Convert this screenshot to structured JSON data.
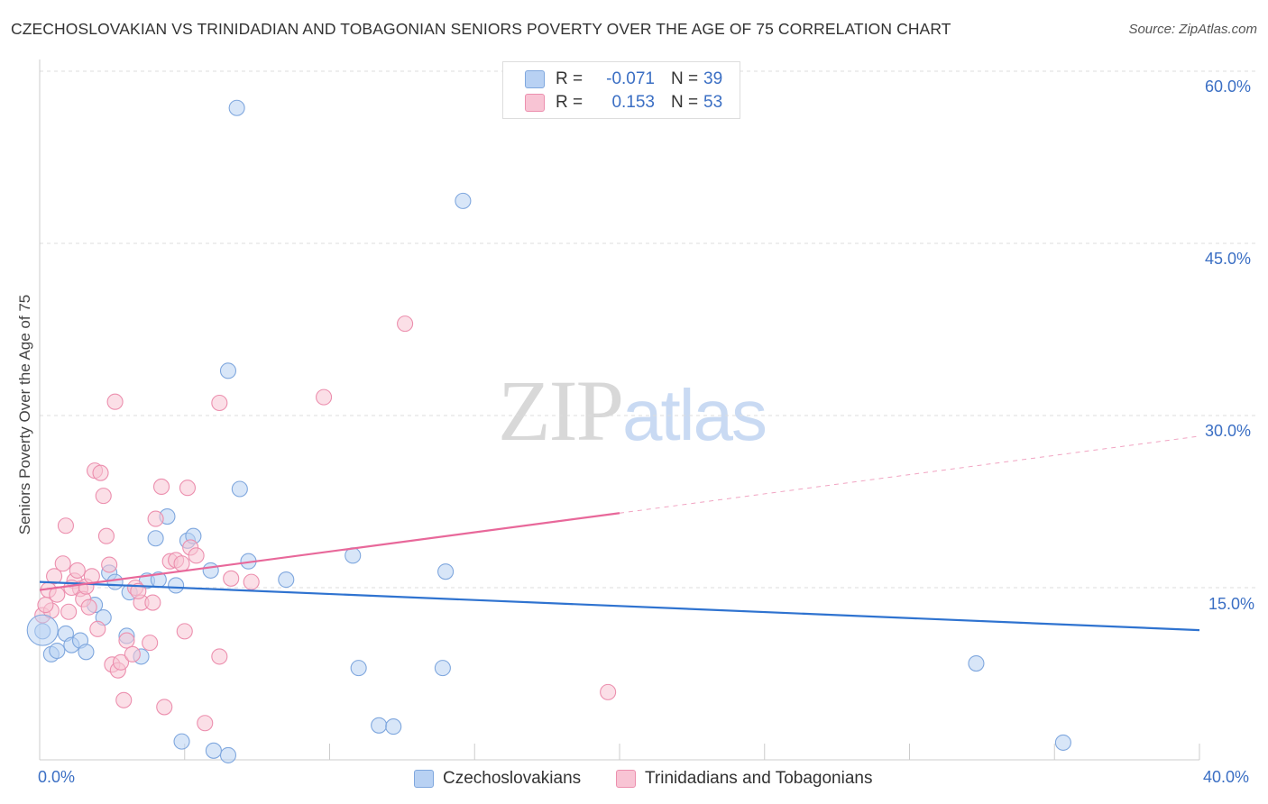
{
  "title": "CZECHOSLOVAKIAN VS TRINIDADIAN AND TOBAGONIAN SENIORS POVERTY OVER THE AGE OF 75 CORRELATION CHART",
  "source": "Source: ZipAtlas.com",
  "watermark": {
    "zip": "ZIP",
    "atlas": "atlas"
  },
  "legend": {
    "rows": [
      {
        "r_label": "R =",
        "r_value": "-0.071",
        "n_label": "N =",
        "n_value": "39"
      },
      {
        "r_label": "R =",
        "r_value": "0.153",
        "n_label": "N =",
        "n_value": "53"
      }
    ]
  },
  "colors": {
    "blue_fill": "#b8d1f3",
    "blue_stroke": "#7fa7de",
    "blue_line": "#2f73d0",
    "pink_fill": "#f8c4d4",
    "pink_stroke": "#ec8fae",
    "pink_line": "#e8689a",
    "grid": "#dddddd",
    "axis_text": "#3b6fc4"
  },
  "chart_data": {
    "type": "scatter",
    "ylabel": "Seniors Poverty Over the Age of 75",
    "x_tick_labels": {
      "left": "0.0%",
      "right": "40.0%"
    },
    "y_tick_labels": [
      "15.0%",
      "30.0%",
      "45.0%",
      "60.0%"
    ],
    "xlim": [
      0,
      40
    ],
    "ylim": [
      0,
      60
    ],
    "grid": true,
    "series": [
      {
        "name": "Czechoslovakians",
        "color": "#b8d1f3",
        "points": [
          [
            0.1,
            11.2
          ],
          [
            0.4,
            9.2
          ],
          [
            0.6,
            9.5
          ],
          [
            0.9,
            11.0
          ],
          [
            1.1,
            10.0
          ],
          [
            1.4,
            10.4
          ],
          [
            1.6,
            9.4
          ],
          [
            1.9,
            13.5
          ],
          [
            2.2,
            12.4
          ],
          [
            2.4,
            16.3
          ],
          [
            2.6,
            15.5
          ],
          [
            3.0,
            10.8
          ],
          [
            3.1,
            14.6
          ],
          [
            3.5,
            9.0
          ],
          [
            3.7,
            15.6
          ],
          [
            4.0,
            19.3
          ],
          [
            4.1,
            15.7
          ],
          [
            4.4,
            21.2
          ],
          [
            4.7,
            15.2
          ],
          [
            5.1,
            19.1
          ],
          [
            5.3,
            19.5
          ],
          [
            5.9,
            16.5
          ],
          [
            6.5,
            33.9
          ],
          [
            6.5,
            0.4
          ],
          [
            4.9,
            1.6
          ],
          [
            6.9,
            23.6
          ],
          [
            6.8,
            56.8
          ],
          [
            7.2,
            17.3
          ],
          [
            8.5,
            15.7
          ],
          [
            11.0,
            8.0
          ],
          [
            10.8,
            17.8
          ],
          [
            11.7,
            3.0
          ],
          [
            12.2,
            2.9
          ],
          [
            13.9,
            8.0
          ],
          [
            14.0,
            16.4
          ],
          [
            14.6,
            48.7
          ],
          [
            32.3,
            8.4
          ],
          [
            35.3,
            1.5
          ],
          [
            6.0,
            0.8
          ]
        ],
        "trend": {
          "x": [
            0,
            40
          ],
          "y": [
            15.5,
            11.3
          ]
        }
      },
      {
        "name": "Trinidadians and Tobagonians",
        "color": "#f8c4d4",
        "points": [
          [
            0.1,
            12.6
          ],
          [
            0.3,
            14.8
          ],
          [
            0.4,
            13.0
          ],
          [
            0.5,
            16.0
          ],
          [
            0.6,
            14.4
          ],
          [
            0.8,
            17.1
          ],
          [
            0.9,
            20.4
          ],
          [
            1.0,
            12.9
          ],
          [
            1.2,
            15.6
          ],
          [
            1.3,
            16.5
          ],
          [
            1.4,
            14.9
          ],
          [
            1.5,
            14.0
          ],
          [
            1.6,
            15.1
          ],
          [
            1.7,
            13.3
          ],
          [
            1.8,
            16.0
          ],
          [
            1.9,
            25.2
          ],
          [
            2.0,
            11.4
          ],
          [
            2.1,
            25.0
          ],
          [
            2.2,
            23.0
          ],
          [
            2.3,
            19.5
          ],
          [
            2.4,
            17.0
          ],
          [
            2.5,
            8.3
          ],
          [
            2.6,
            31.2
          ],
          [
            2.7,
            7.8
          ],
          [
            2.8,
            8.5
          ],
          [
            2.9,
            5.2
          ],
          [
            3.0,
            10.4
          ],
          [
            3.2,
            9.2
          ],
          [
            3.3,
            15.0
          ],
          [
            3.5,
            13.7
          ],
          [
            3.9,
            13.7
          ],
          [
            3.8,
            10.2
          ],
          [
            4.0,
            21.0
          ],
          [
            4.2,
            23.8
          ],
          [
            4.3,
            4.6
          ],
          [
            4.5,
            17.3
          ],
          [
            4.7,
            17.4
          ],
          [
            4.9,
            17.1
          ],
          [
            5.0,
            11.2
          ],
          [
            5.1,
            23.7
          ],
          [
            5.2,
            18.5
          ],
          [
            5.4,
            17.8
          ],
          [
            5.7,
            3.2
          ],
          [
            6.2,
            9.0
          ],
          [
            6.2,
            31.1
          ],
          [
            6.6,
            15.8
          ],
          [
            9.8,
            31.6
          ],
          [
            12.6,
            38.0
          ],
          [
            7.3,
            15.5
          ],
          [
            19.6,
            5.9
          ],
          [
            0.2,
            13.5
          ],
          [
            1.1,
            15.0
          ],
          [
            3.4,
            14.7
          ]
        ],
        "trend": {
          "x": [
            0,
            40
          ],
          "y": [
            14.8,
            28.2
          ],
          "solid_until_x": 20
        }
      }
    ]
  }
}
